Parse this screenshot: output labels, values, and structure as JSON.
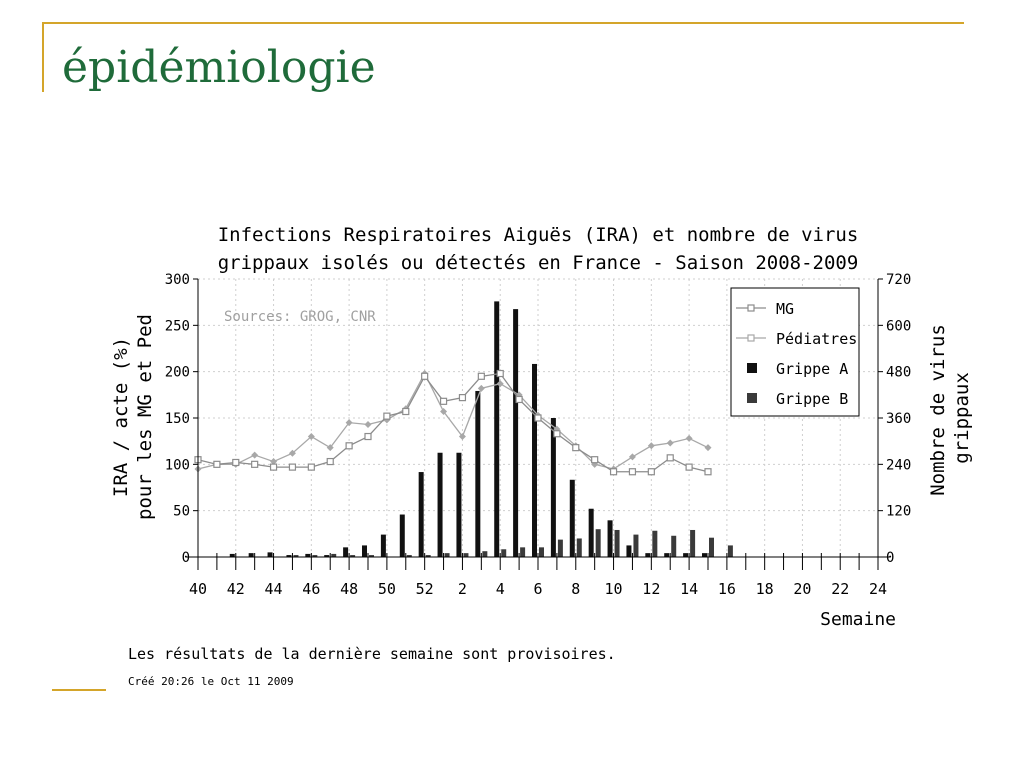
{
  "slide": {
    "title": "épidémiologie",
    "colors": {
      "title": "#1f6b3a",
      "accent_lines": "#d4a52a"
    }
  },
  "chart_data": {
    "type": "bar",
    "title_line1": "Infections Respiratoires Aiguës (IRA) et nombre de virus",
    "title_line2": "grippaux isolés ou détectés en France - Saison 2008-2009",
    "source": "Sources: GROG, CNR",
    "ylabel_line1": "IRA / acte (%)",
    "ylabel_line2": "pour les MG et Ped",
    "y2label_line1": "Nombre de virus",
    "y2label_line2": "grippaux",
    "xlabel": "Semaine",
    "ylim": [
      0,
      300
    ],
    "y2lim": [
      0,
      720
    ],
    "yticks": [
      "0",
      "50",
      "100",
      "150",
      "200",
      "250",
      "300"
    ],
    "y2ticks": [
      "0",
      "120",
      "240",
      "360",
      "480",
      "600",
      "720"
    ],
    "weeks": [
      40,
      41,
      42,
      43,
      44,
      45,
      46,
      47,
      48,
      49,
      50,
      51,
      52,
      1,
      2,
      3,
      4,
      5,
      6,
      7,
      8,
      9,
      10,
      11,
      12,
      13,
      14,
      15,
      16,
      17,
      18,
      19,
      20,
      21,
      22,
      23,
      24
    ],
    "xtick_labels": [
      "40",
      "42",
      "44",
      "46",
      "48",
      "50",
      "52",
      "2",
      "4",
      "6",
      "8",
      "10",
      "12",
      "14",
      "16",
      "18",
      "20",
      "22",
      "24"
    ],
    "grid": true,
    "legend_position": "top-right",
    "series": [
      {
        "name": "MG",
        "kind": "line",
        "axis": "left",
        "color": "#8c8c8c",
        "values": [
          105,
          100,
          102,
          100,
          97,
          97,
          97,
          103,
          120,
          130,
          152,
          157,
          195,
          168,
          172,
          195,
          198,
          170,
          150,
          133,
          118,
          105,
          92,
          92,
          92,
          107,
          97,
          92
        ]
      },
      {
        "name": "Pédiatres",
        "kind": "line",
        "axis": "left",
        "color": "#a8a8a8",
        "values": [
          95,
          100,
          100,
          110,
          103,
          112,
          130,
          118,
          145,
          143,
          148,
          160,
          198,
          157,
          130,
          182,
          187,
          175,
          153,
          138,
          120,
          100,
          95,
          108,
          120,
          123,
          128,
          118
        ]
      },
      {
        "name": "Grippe A",
        "kind": "bar",
        "axis": "right",
        "color": "#111111",
        "values": [
          0,
          0,
          8,
          10,
          12,
          5,
          8,
          5,
          25,
          30,
          58,
          110,
          220,
          270,
          270,
          430,
          662,
          642,
          500,
          360,
          200,
          125,
          95,
          30,
          10,
          10,
          10,
          10
        ]
      },
      {
        "name": "Grippe B",
        "kind": "bar",
        "axis": "right",
        "color": "#3a3a3a",
        "values": [
          0,
          0,
          0,
          0,
          0,
          5,
          5,
          8,
          5,
          5,
          0,
          5,
          5,
          10,
          10,
          15,
          20,
          25,
          25,
          45,
          48,
          72,
          70,
          58,
          68,
          55,
          70,
          50,
          30
        ]
      }
    ],
    "notes": {
      "provisional": "Les résultats de la dernière semaine sont provisoires.",
      "created": "Créé 20:26 le Oct 11 2009"
    }
  }
}
